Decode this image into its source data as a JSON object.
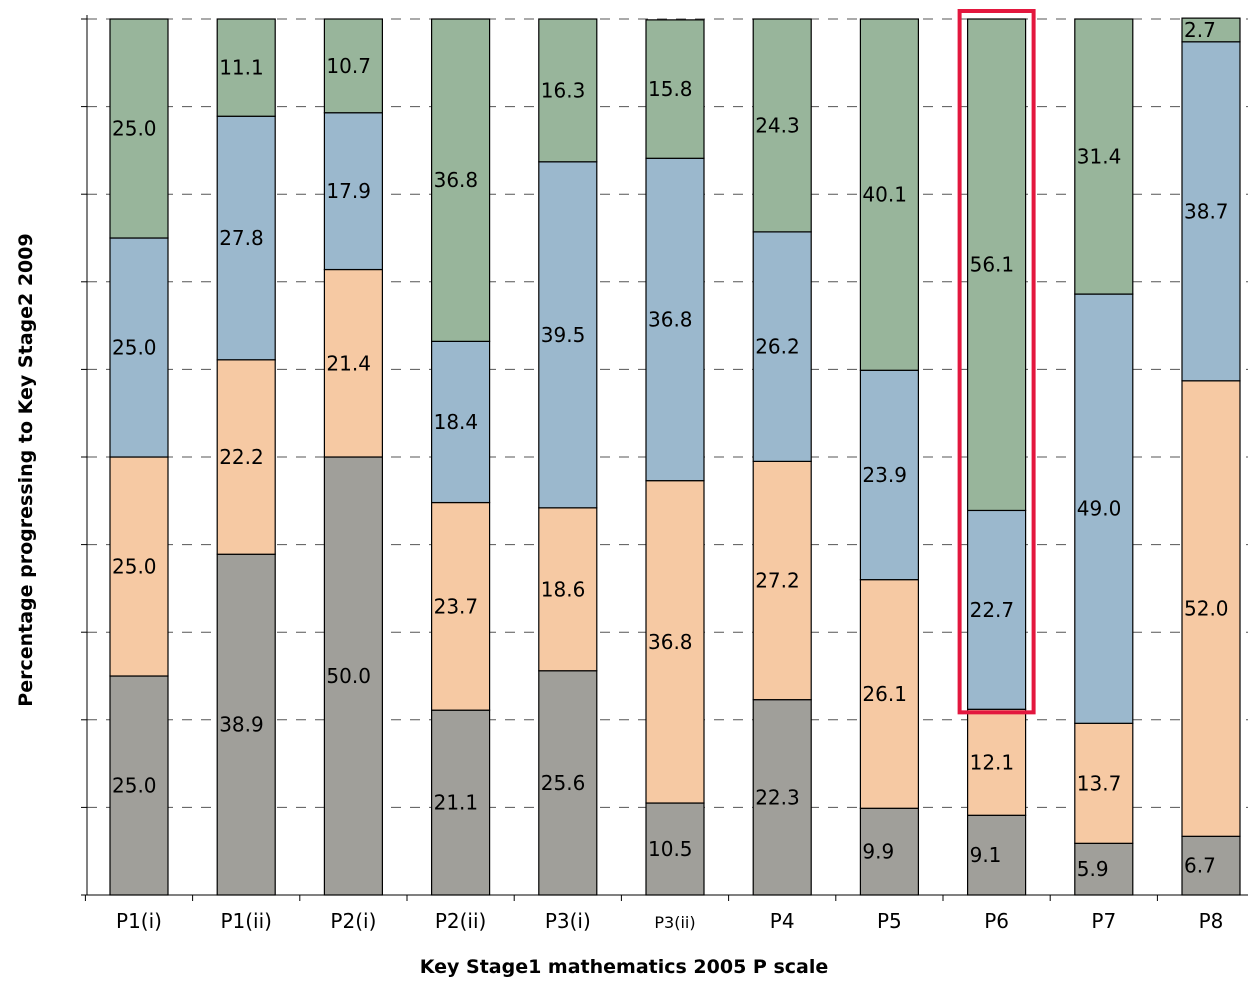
{
  "chart_data": {
    "type": "bar",
    "stacked": true,
    "xlabel": "Key Stage1 mathematics 2005 P scale",
    "ylabel": "Percentage progressing to Key Stage2 2009",
    "ylim": [
      0,
      100
    ],
    "grid": true,
    "categories": [
      "P1(i)",
      "P1(ii)",
      "P2(i)",
      "P2(ii)",
      "P3(i)",
      "P3(ii)",
      "P4",
      "P5",
      "P6",
      "P7",
      "P8"
    ],
    "series": [
      {
        "color": "#a09f9a",
        "values": [
          25.0,
          38.9,
          50.0,
          21.1,
          25.6,
          10.5,
          22.3,
          9.9,
          9.1,
          5.9,
          6.7
        ]
      },
      {
        "color": "#f6c9a3",
        "values": [
          25.0,
          22.2,
          21.4,
          23.7,
          18.6,
          36.8,
          27.2,
          26.1,
          12.1,
          13.7,
          52.0
        ]
      },
      {
        "color": "#9bb8cd",
        "values": [
          25.0,
          27.8,
          17.9,
          18.4,
          39.5,
          36.8,
          26.2,
          23.9,
          22.7,
          49.0,
          38.7
        ]
      },
      {
        "color": "#98b59b",
        "values": [
          25.0,
          11.1,
          10.7,
          36.8,
          16.3,
          15.8,
          24.3,
          40.1,
          56.1,
          31.4,
          2.7
        ]
      }
    ],
    "highlight": {
      "category": "P6",
      "color": "#e3173e"
    }
  }
}
